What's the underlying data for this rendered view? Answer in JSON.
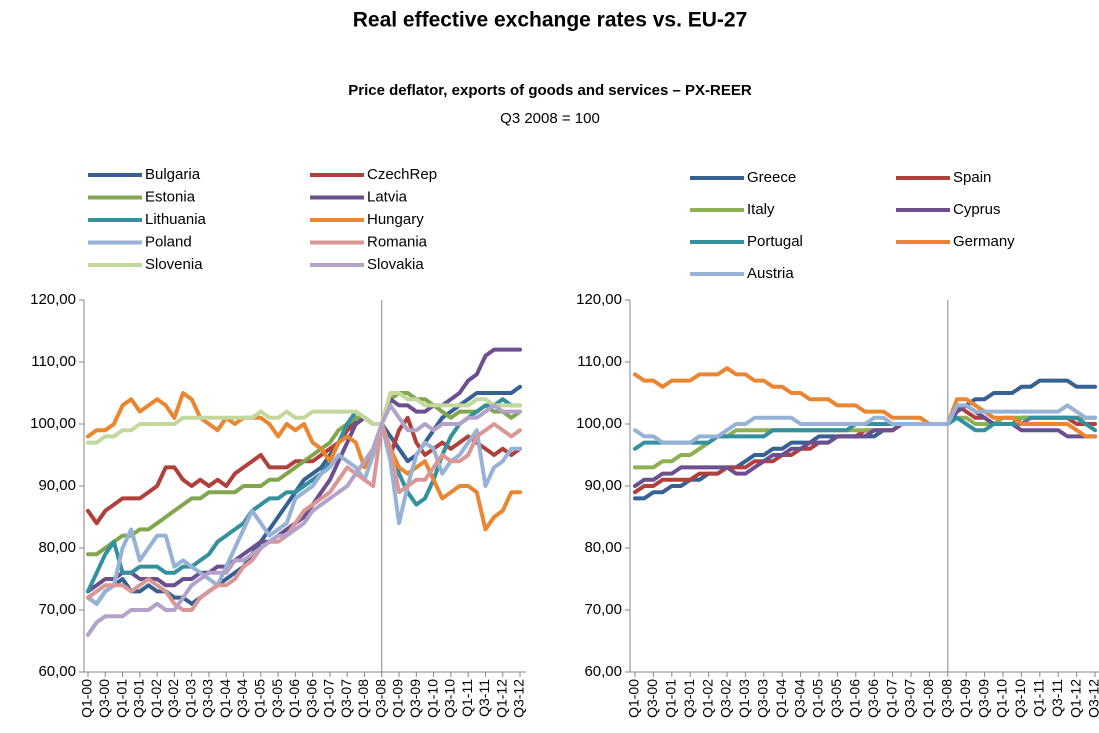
{
  "title": "Real effective exchange rates vs. EU-27",
  "subtitle": "Price deflator, exports of goods and services – PX-REER",
  "note": "Q3 2008 = 100",
  "chart_data": [
    {
      "type": "line",
      "categories": [
        "Q1-00",
        null,
        "Q3-00",
        null,
        "Q1-01",
        null,
        "Q3-01",
        null,
        "Q1-02",
        null,
        "Q3-02",
        null,
        "Q1-03",
        null,
        "Q3-03",
        null,
        "Q1-04",
        null,
        "Q3-04",
        null,
        "Q1-05",
        null,
        "Q3-05",
        null,
        "Q1-06",
        null,
        "Q3-06",
        null,
        "Q1-07",
        null,
        "Q3-07",
        null,
        "Q1-08",
        null,
        "Q3-08",
        null,
        "Q1-09",
        null,
        "Q3-09",
        null,
        "Q1-10",
        null,
        "Q3-10",
        null,
        "Q1-11",
        null,
        "Q3-11",
        null,
        "Q1-12",
        null,
        "Q3-12"
      ],
      "ylim": [
        60,
        120
      ],
      "yticks": [
        {
          "value": 60,
          "label": "60,00"
        },
        {
          "value": 70,
          "label": "70,00"
        },
        {
          "value": 80,
          "label": "80,00"
        },
        {
          "value": 90,
          "label": "90,00"
        },
        {
          "value": 100,
          "label": "100,00"
        },
        {
          "value": 110,
          "label": "110,00"
        },
        {
          "value": 120,
          "label": "120,00"
        }
      ],
      "vline": "Q3-08",
      "legend": "top",
      "series": [
        {
          "name": "Bulgaria",
          "color": "#376193",
          "values": [
            72,
            71,
            73,
            74,
            75,
            73,
            73,
            74,
            73,
            73,
            72,
            72,
            71,
            72,
            73,
            74,
            75,
            76,
            77,
            79,
            81,
            83,
            85,
            87,
            89,
            91,
            92,
            93,
            95,
            97,
            99,
            101,
            101,
            100,
            100,
            98,
            96,
            94,
            95,
            97,
            99,
            101,
            102,
            103,
            104,
            105,
            105,
            105,
            105,
            105,
            106
          ]
        },
        {
          "name": "CzechRep",
          "color": "#b0403b",
          "values": [
            86,
            84,
            86,
            87,
            88,
            88,
            88,
            89,
            90,
            93,
            93,
            91,
            90,
            91,
            90,
            91,
            90,
            92,
            93,
            94,
            95,
            93,
            93,
            93,
            94,
            94,
            94,
            95,
            96,
            97,
            99,
            100,
            101,
            100,
            100,
            95,
            99,
            101,
            97,
            95,
            96,
            97,
            96,
            97,
            98,
            97,
            96,
            95,
            96,
            95,
            96
          ]
        },
        {
          "name": "Estonia",
          "color": "#82a64e",
          "values": [
            79,
            79,
            80,
            81,
            82,
            82,
            83,
            83,
            84,
            85,
            86,
            87,
            88,
            88,
            89,
            89,
            89,
            89,
            90,
            90,
            90,
            91,
            91,
            92,
            93,
            94,
            95,
            96,
            97,
            99,
            100,
            101,
            101,
            100,
            100,
            104,
            105,
            105,
            104,
            104,
            103,
            102,
            101,
            102,
            102,
            102,
            103,
            102,
            102,
            101,
            102
          ]
        },
        {
          "name": "Latvia",
          "color": "#6c4f8f",
          "values": [
            73,
            74,
            75,
            75,
            76,
            76,
            75,
            75,
            75,
            74,
            74,
            75,
            75,
            76,
            76,
            77,
            77,
            78,
            79,
            80,
            81,
            81,
            82,
            83,
            84,
            85,
            87,
            89,
            91,
            94,
            97,
            100,
            101,
            100,
            100,
            104,
            103,
            103,
            102,
            102,
            103,
            103,
            104,
            105,
            107,
            108,
            111,
            112,
            112,
            112,
            112
          ]
        },
        {
          "name": "Lithuania",
          "color": "#34909f",
          "values": [
            73,
            76,
            79,
            81,
            76,
            76,
            77,
            77,
            77,
            76,
            76,
            77,
            77,
            78,
            79,
            81,
            82,
            83,
            84,
            86,
            87,
            88,
            88,
            89,
            89,
            90,
            91,
            92,
            94,
            97,
            100,
            102,
            101,
            100,
            100,
            96,
            92,
            89,
            87,
            88,
            91,
            95,
            98,
            100,
            101,
            102,
            103,
            103,
            104,
            103,
            103
          ]
        },
        {
          "name": "Hungary",
          "color": "#ea8630",
          "values": [
            98,
            99,
            99,
            100,
            103,
            104,
            102,
            103,
            104,
            103,
            101,
            105,
            104,
            101,
            100,
            99,
            101,
            100,
            101,
            101,
            101,
            100,
            98,
            100,
            99,
            100,
            97,
            96,
            94,
            97,
            98,
            97,
            93,
            96,
            100,
            96,
            93,
            92,
            93,
            94,
            91,
            88,
            89,
            90,
            90,
            89,
            83,
            85,
            86,
            89,
            89
          ]
        },
        {
          "name": "Poland",
          "color": "#97b2d6",
          "values": [
            72,
            71,
            73,
            74,
            80,
            83,
            78,
            80,
            82,
            82,
            77,
            78,
            77,
            76,
            75,
            74,
            77,
            80,
            83,
            86,
            84,
            82,
            83,
            84,
            88,
            89,
            90,
            92,
            93,
            95,
            94,
            93,
            91,
            95,
            100,
            94,
            84,
            90,
            95,
            97,
            96,
            92,
            94,
            95,
            97,
            99,
            90,
            93,
            94,
            96,
            96
          ]
        },
        {
          "name": "Romania",
          "color": "#d99795",
          "values": [
            72,
            73,
            74,
            74,
            74,
            73,
            74,
            75,
            74,
            73,
            71,
            70,
            70,
            72,
            73,
            74,
            74,
            75,
            77,
            78,
            80,
            81,
            81,
            82,
            84,
            86,
            87,
            88,
            89,
            91,
            93,
            92,
            91,
            90,
            100,
            96,
            89,
            90,
            91,
            91,
            93,
            95,
            94,
            94,
            95,
            98,
            99,
            100,
            99,
            98,
            99
          ]
        },
        {
          "name": "Slovenia",
          "color": "#c4d89e",
          "values": [
            97,
            97,
            98,
            98,
            99,
            99,
            100,
            100,
            100,
            100,
            100,
            101,
            101,
            101,
            101,
            101,
            101,
            101,
            101,
            101,
            102,
            101,
            101,
            102,
            101,
            101,
            102,
            102,
            102,
            102,
            102,
            102,
            101,
            100,
            100,
            105,
            105,
            104,
            104,
            103,
            103,
            103,
            103,
            103,
            103,
            104,
            104,
            103,
            103,
            103,
            103
          ]
        },
        {
          "name": "Slovakia",
          "color": "#b3a3c8",
          "values": [
            66,
            68,
            69,
            69,
            69,
            70,
            70,
            70,
            71,
            70,
            70,
            72,
            74,
            75,
            76,
            76,
            76,
            78,
            78,
            79,
            80,
            81,
            82,
            82,
            83,
            84,
            86,
            87,
            88,
            89,
            90,
            92,
            94,
            96,
            100,
            103,
            101,
            99,
            99,
            100,
            99,
            100,
            100,
            100,
            101,
            101,
            102,
            103,
            102,
            102,
            102
          ]
        }
      ]
    },
    {
      "type": "line",
      "categories": [
        "Q1-00",
        null,
        "Q3-00",
        null,
        "Q1-01",
        null,
        "Q3-01",
        null,
        "Q1-02",
        null,
        "Q3-02",
        null,
        "Q1-03",
        null,
        "Q3-03",
        null,
        "Q1-04",
        null,
        "Q3-04",
        null,
        "Q1-05",
        null,
        "Q3-05",
        null,
        "Q1-06",
        null,
        "Q3-06",
        null,
        "Q1-07",
        null,
        "Q3-07",
        null,
        "Q1-08",
        null,
        "Q3-08",
        null,
        "Q1-09",
        null,
        "Q3-09",
        null,
        "Q1-10",
        null,
        "Q3-10",
        null,
        "Q1-11",
        null,
        "Q3-11",
        null,
        "Q1-12",
        null,
        "Q3-12"
      ],
      "ylim": [
        60,
        120
      ],
      "yticks": [
        {
          "value": 60,
          "label": "60,00"
        },
        {
          "value": 70,
          "label": "70,00"
        },
        {
          "value": 80,
          "label": "80,00"
        },
        {
          "value": 90,
          "label": "90,00"
        },
        {
          "value": 100,
          "label": "100,00"
        },
        {
          "value": 110,
          "label": "110,00"
        },
        {
          "value": 120,
          "label": "120,00"
        }
      ],
      "vline": "Q3-08",
      "legend": "top",
      "series": [
        {
          "name": "Greece",
          "color": "#376193",
          "values": [
            88,
            88,
            89,
            89,
            90,
            90,
            91,
            91,
            92,
            92,
            93,
            93,
            94,
            95,
            95,
            96,
            96,
            97,
            97,
            97,
            98,
            98,
            98,
            98,
            98,
            98,
            98,
            99,
            99,
            100,
            100,
            100,
            100,
            100,
            100,
            102,
            103,
            104,
            104,
            105,
            105,
            105,
            106,
            106,
            107,
            107,
            107,
            107,
            106,
            106,
            106
          ]
        },
        {
          "name": "Spain",
          "color": "#b0403b",
          "values": [
            89,
            90,
            90,
            91,
            91,
            91,
            91,
            92,
            92,
            92,
            93,
            93,
            93,
            94,
            94,
            94,
            95,
            95,
            96,
            96,
            97,
            97,
            98,
            98,
            98,
            99,
            99,
            99,
            99,
            100,
            100,
            100,
            100,
            100,
            100,
            103,
            102,
            101,
            101,
            100,
            100,
            100,
            101,
            101,
            101,
            101,
            101,
            101,
            100,
            100,
            100
          ]
        },
        {
          "name": "Italy",
          "color": "#8fb050",
          "values": [
            93,
            93,
            93,
            94,
            94,
            95,
            95,
            96,
            97,
            98,
            98,
            99,
            99,
            99,
            99,
            99,
            99,
            99,
            99,
            99,
            99,
            99,
            99,
            99,
            99,
            99,
            99,
            99,
            99,
            100,
            100,
            100,
            100,
            100,
            100,
            101,
            101,
            100,
            100,
            100,
            101,
            101,
            101,
            101,
            101,
            101,
            101,
            101,
            101,
            101,
            101
          ]
        },
        {
          "name": "Cyprus",
          "color": "#6c4f8f",
          "values": [
            90,
            91,
            91,
            92,
            92,
            93,
            93,
            93,
            93,
            93,
            93,
            92,
            92,
            93,
            94,
            95,
            95,
            96,
            96,
            97,
            97,
            97,
            98,
            98,
            98,
            98,
            99,
            99,
            99,
            100,
            100,
            100,
            100,
            100,
            100,
            102,
            103,
            102,
            101,
            100,
            100,
            100,
            99,
            99,
            99,
            99,
            99,
            98,
            98,
            98,
            98
          ]
        },
        {
          "name": "Portugal",
          "color": "#34909f",
          "values": [
            96,
            97,
            97,
            97,
            97,
            97,
            97,
            97,
            97,
            98,
            98,
            98,
            98,
            98,
            98,
            99,
            99,
            99,
            99,
            99,
            99,
            99,
            99,
            99,
            100,
            100,
            100,
            100,
            100,
            100,
            100,
            100,
            100,
            100,
            100,
            101,
            100,
            99,
            99,
            100,
            100,
            100,
            100,
            101,
            101,
            101,
            101,
            101,
            101,
            100,
            99
          ]
        },
        {
          "name": "Germany",
          "color": "#ea8630",
          "values": [
            108,
            107,
            107,
            106,
            107,
            107,
            107,
            108,
            108,
            108,
            109,
            108,
            108,
            107,
            107,
            106,
            106,
            105,
            105,
            104,
            104,
            104,
            103,
            103,
            103,
            102,
            102,
            102,
            101,
            101,
            101,
            101,
            100,
            100,
            100,
            104,
            104,
            103,
            102,
            101,
            101,
            101,
            100,
            100,
            100,
            100,
            100,
            100,
            99,
            98,
            98
          ]
        },
        {
          "name": "Austria",
          "color": "#97b2d6",
          "values": [
            99,
            98,
            98,
            97,
            97,
            97,
            97,
            98,
            98,
            98,
            99,
            100,
            100,
            101,
            101,
            101,
            101,
            101,
            100,
            100,
            100,
            100,
            100,
            100,
            100,
            100,
            101,
            101,
            100,
            100,
            100,
            100,
            100,
            100,
            100,
            103,
            103,
            102,
            102,
            102,
            102,
            102,
            102,
            102,
            102,
            102,
            102,
            103,
            102,
            101,
            101
          ]
        }
      ]
    }
  ]
}
